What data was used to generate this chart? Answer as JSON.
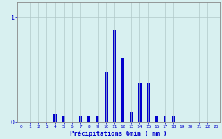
{
  "hours": [
    0,
    1,
    2,
    3,
    4,
    5,
    6,
    7,
    8,
    9,
    10,
    11,
    12,
    13,
    14,
    15,
    16,
    17,
    18,
    19,
    20,
    21,
    22,
    23
  ],
  "values": [
    0.0,
    0.0,
    0.0,
    0.0,
    0.08,
    0.06,
    0.0,
    0.06,
    0.06,
    0.06,
    0.48,
    0.88,
    0.62,
    0.1,
    0.38,
    0.38,
    0.06,
    0.06,
    0.06,
    0.0,
    0.0,
    0.0,
    0.0,
    0.0
  ],
  "bar_color": "#0000cc",
  "background_color": "#d8f0f0",
  "grid_color": "#b0c8c8",
  "axis_color": "#888888",
  "text_color": "#0000cc",
  "xlabel": "Précipitations 6min ( mm )",
  "ylim": [
    0,
    1.15
  ],
  "xlim": [
    -0.5,
    23.5
  ],
  "tick_labels": [
    "0",
    "1",
    "2",
    "3",
    "4",
    "5",
    "6",
    "7",
    "8",
    "9",
    "10",
    "11",
    "12",
    "13",
    "14",
    "15",
    "16",
    "17",
    "18",
    "19",
    "20",
    "21",
    "22",
    "23"
  ],
  "bar_width": 0.35
}
